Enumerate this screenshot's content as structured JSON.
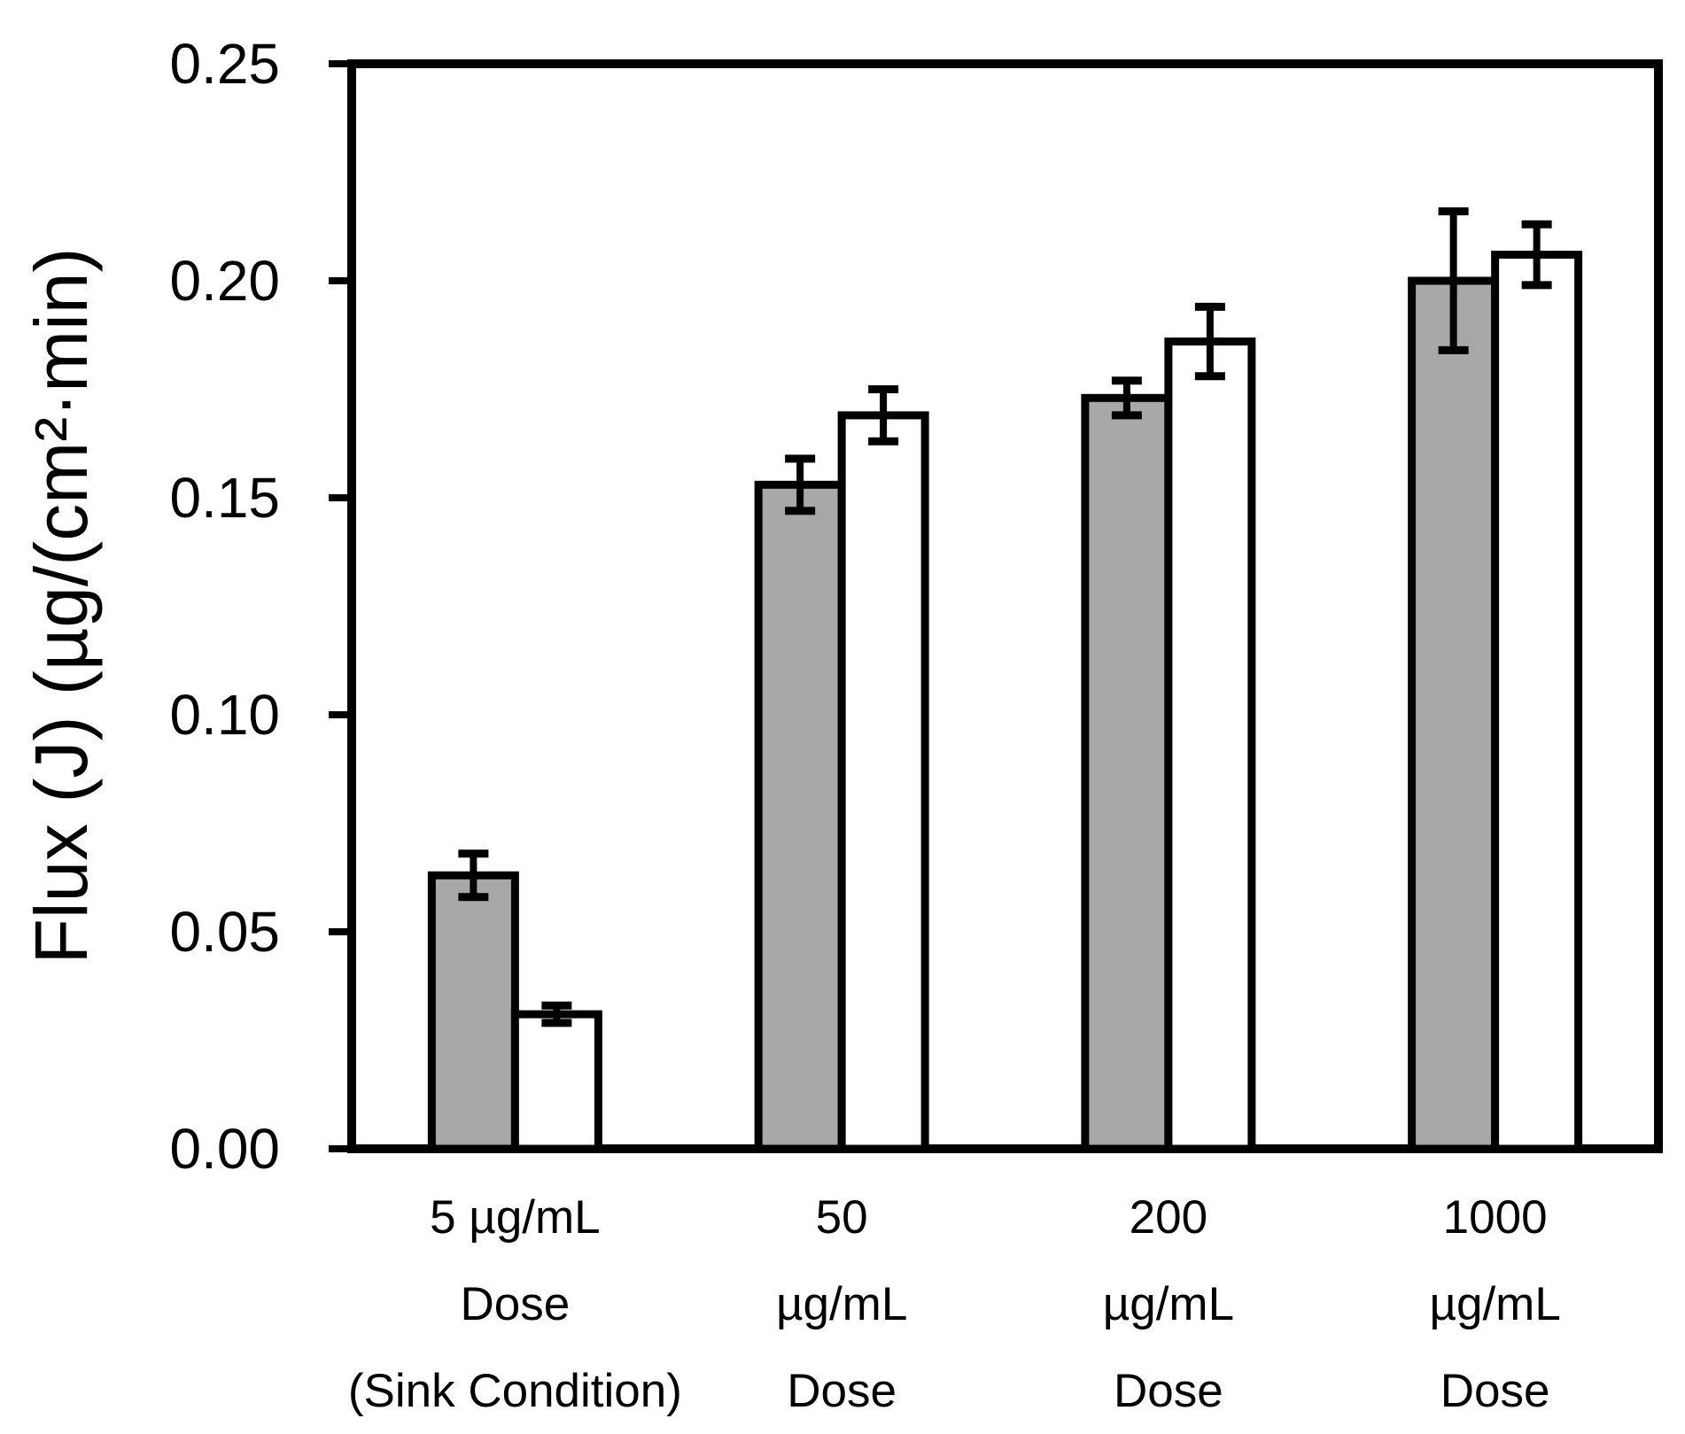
{
  "chart_data": {
    "type": "bar",
    "subtype": "grouped_vertical_bars_with_error_bars",
    "title": "",
    "xlabel": "",
    "ylabel": "Flux (J) (µg/(cm²·min)",
    "ylim": [
      0,
      0.25
    ],
    "yticks": [
      0,
      0.05,
      0.1,
      0.15,
      0.2,
      0.25
    ],
    "ytick_labels": [
      "0.00",
      "0.05",
      "0.10",
      "0.15",
      "0.20",
      "0.25"
    ],
    "grid": false,
    "legend": "none",
    "plot_frame": "full-box",
    "categories": [
      {
        "id": "5ugml-sink",
        "lines": [
          "5 µg/mL",
          "Dose",
          "(Sink Condition)"
        ]
      },
      {
        "id": "50ugml",
        "lines": [
          "50",
          "µg/mL",
          "Dose"
        ]
      },
      {
        "id": "200ugml",
        "lines": [
          "200",
          "µg/mL",
          "Dose"
        ]
      },
      {
        "id": "1000ugml",
        "lines": [
          "1000",
          "µg/mL",
          "Dose"
        ]
      }
    ],
    "series": [
      {
        "key": "gray",
        "name": "gray bars",
        "fill": "#A8A8A8",
        "outline": "#000000",
        "values": [
          0.063,
          0.153,
          0.173,
          0.2
        ],
        "errors": [
          0.005,
          0.006,
          0.004,
          0.016
        ]
      },
      {
        "key": "white",
        "name": "white bars",
        "fill": "#FFFFFF",
        "outline": "#000000",
        "values": [
          0.031,
          0.169,
          0.186,
          0.206
        ],
        "errors": [
          0.002,
          0.006,
          0.008,
          0.007
        ]
      }
    ],
    "colors": {
      "axis": "#000000",
      "text": "#000000",
      "error_bars": "#000000"
    }
  }
}
